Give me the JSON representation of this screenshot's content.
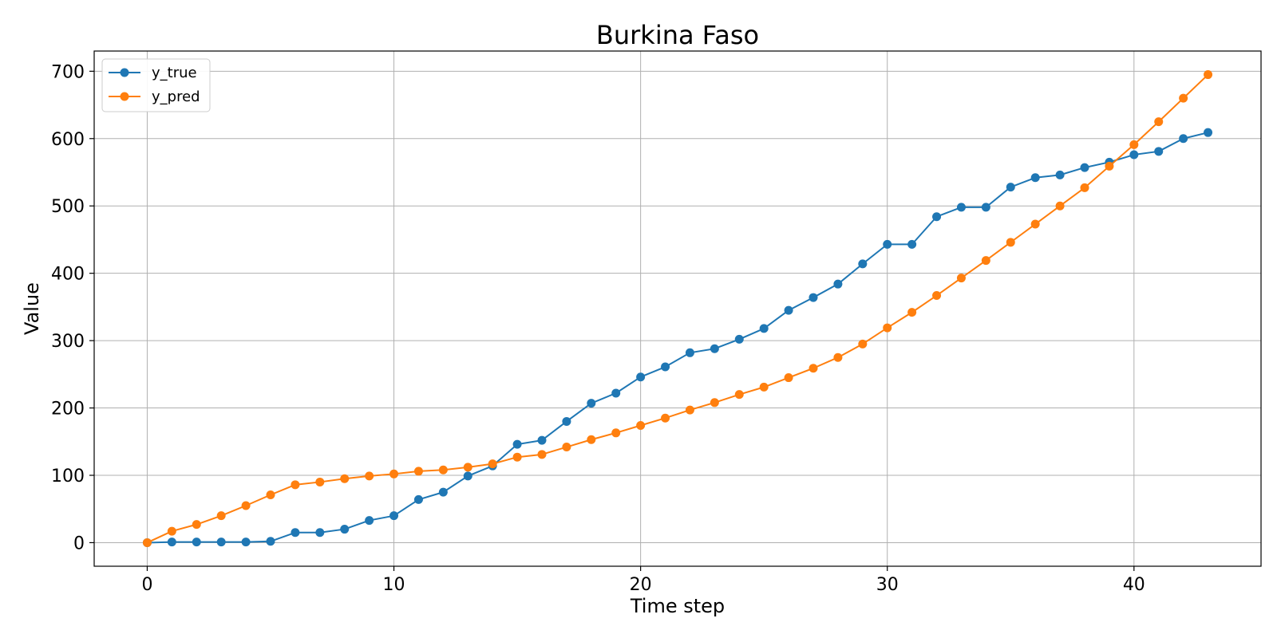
{
  "chart_data": {
    "type": "line",
    "title": "Burkina Faso",
    "xlabel": "Time step",
    "ylabel": "Value",
    "xlim": [
      -2.15,
      45.15
    ],
    "ylim": [
      -35,
      730
    ],
    "xticks": [
      0,
      10,
      20,
      30,
      40
    ],
    "yticks": [
      0,
      100,
      200,
      300,
      400,
      500,
      600,
      700
    ],
    "grid": true,
    "legend_position": "upper left",
    "series": [
      {
        "name": "y_true",
        "color": "#1f77b4",
        "x": [
          0,
          1,
          2,
          3,
          4,
          5,
          6,
          7,
          8,
          9,
          10,
          11,
          12,
          13,
          14,
          15,
          16,
          17,
          18,
          19,
          20,
          21,
          22,
          23,
          24,
          25,
          26,
          27,
          28,
          29,
          30,
          31,
          32,
          33,
          34,
          35,
          36,
          37,
          38,
          39,
          40,
          41,
          42,
          43
        ],
        "values": [
          0,
          1,
          1,
          1,
          1,
          2,
          15,
          15,
          20,
          33,
          40,
          64,
          75,
          99,
          114,
          146,
          152,
          180,
          207,
          222,
          246,
          261,
          282,
          288,
          302,
          318,
          345,
          364,
          384,
          414,
          443,
          443,
          484,
          498,
          498,
          528,
          542,
          546,
          557,
          565,
          576,
          581,
          600,
          609
        ]
      },
      {
        "name": "y_pred",
        "color": "#ff7f0e",
        "x": [
          0,
          1,
          2,
          3,
          4,
          5,
          6,
          7,
          8,
          9,
          10,
          11,
          12,
          13,
          14,
          15,
          16,
          17,
          18,
          19,
          20,
          21,
          22,
          23,
          24,
          25,
          26,
          27,
          28,
          29,
          30,
          31,
          32,
          33,
          34,
          35,
          36,
          37,
          38,
          39,
          40,
          41,
          42,
          43
        ],
        "values": [
          0,
          17,
          27,
          40,
          55,
          71,
          86,
          90,
          95,
          99,
          102,
          106,
          108,
          112,
          117,
          127,
          131,
          142,
          153,
          163,
          174,
          185,
          197,
          208,
          220,
          231,
          245,
          259,
          275,
          295,
          319,
          342,
          367,
          393,
          419,
          446,
          473,
          500,
          527,
          559,
          591,
          625,
          660,
          695
        ]
      }
    ]
  }
}
